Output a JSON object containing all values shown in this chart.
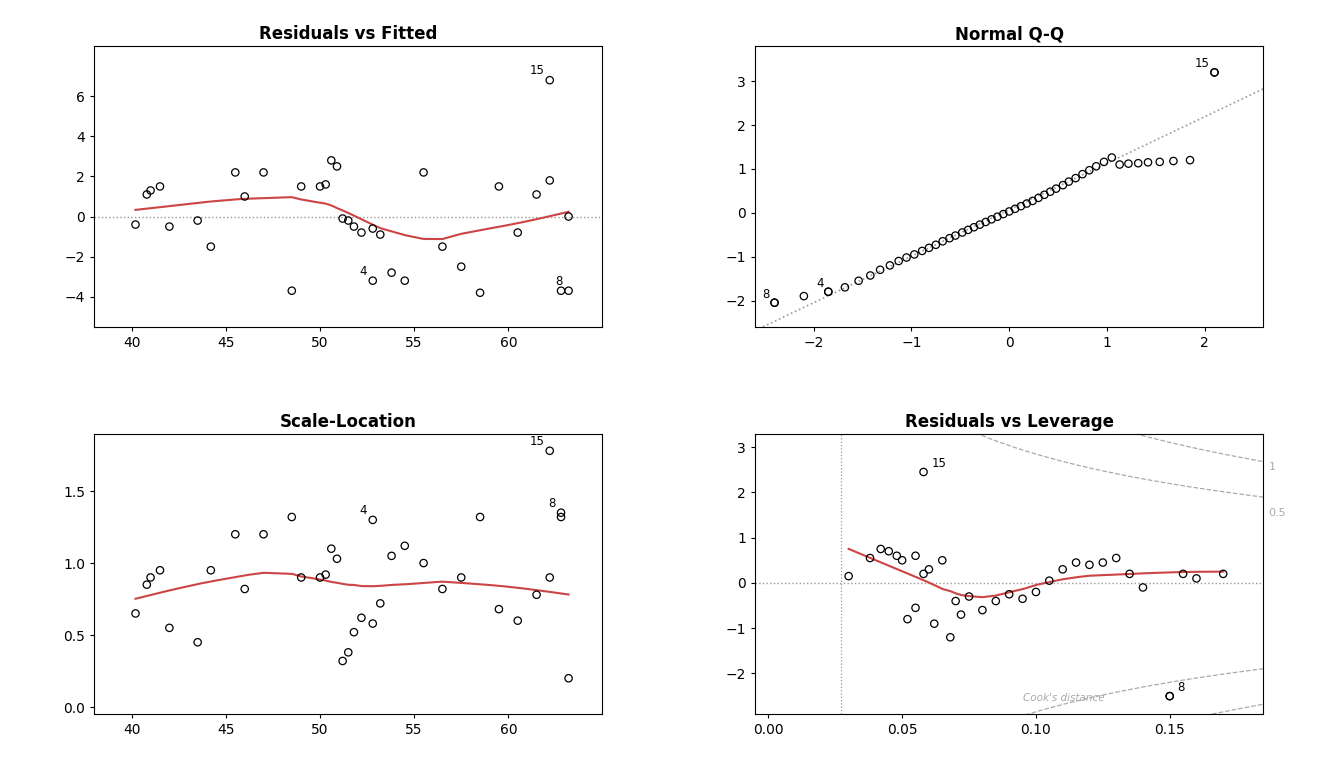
{
  "plot1_title": "Residuals vs Fitted",
  "plot2_title": "Normal Q-Q",
  "plot3_title": "Scale-Location",
  "plot4_title": "Residuals vs Leverage",
  "bg_color": "#ffffff",
  "line_color_red": "#cc4444",
  "line_color_gray": "#999999",
  "point_color": "#000000",
  "cook_color": "#aaaaaa",
  "plot1_fitted": [
    40.2,
    40.8,
    41.0,
    41.5,
    42.0,
    43.5,
    44.2,
    45.5,
    46.0,
    47.0,
    48.5,
    49.0,
    50.0,
    50.3,
    50.6,
    50.9,
    51.2,
    51.5,
    51.8,
    52.2,
    52.8,
    53.2,
    53.8,
    54.5,
    55.5,
    56.5,
    57.5,
    58.5,
    59.5,
    60.5,
    61.5,
    62.2,
    62.8,
    63.2
  ],
  "plot1_residuals": [
    -0.4,
    1.1,
    1.3,
    1.5,
    -0.5,
    -0.2,
    -1.5,
    2.2,
    1.0,
    2.2,
    -3.7,
    1.5,
    1.5,
    1.6,
    2.8,
    2.5,
    -0.1,
    -0.2,
    -0.5,
    -0.8,
    -0.6,
    -0.9,
    -2.8,
    -3.2,
    2.2,
    -1.5,
    -2.5,
    -3.8,
    1.5,
    -0.8,
    1.1,
    1.8,
    -3.7,
    0.0
  ],
  "plot1_labeled_pts": {
    "4": [
      52.8,
      -3.2
    ],
    "8": [
      63.2,
      -3.7
    ],
    "15": [
      62.2,
      6.8
    ]
  },
  "plot1_xlim": [
    38.0,
    65.0
  ],
  "plot1_ylim": [
    -5.5,
    8.5
  ],
  "plot1_xticks": [
    40,
    45,
    50,
    55,
    60
  ],
  "plot1_yticks": [
    -4,
    -2,
    0,
    2,
    4,
    6
  ],
  "plot2_theoretical": [
    -2.4,
    -2.1,
    -1.85,
    -1.68,
    -1.54,
    -1.42,
    -1.32,
    -1.22,
    -1.13,
    -1.05,
    -0.97,
    -0.89,
    -0.82,
    -0.75,
    -0.68,
    -0.61,
    -0.55,
    -0.48,
    -0.42,
    -0.36,
    -0.3,
    -0.24,
    -0.18,
    -0.12,
    -0.06,
    0.0,
    0.06,
    0.12,
    0.18,
    0.24,
    0.3,
    0.36,
    0.42,
    0.48,
    0.55,
    0.61,
    0.68,
    0.75,
    0.82,
    0.89,
    0.97,
    1.05,
    1.13,
    1.22,
    1.32,
    1.42,
    1.54,
    1.68,
    1.85,
    2.1
  ],
  "plot2_sample": [
    -2.05,
    -1.9,
    -1.8,
    -1.7,
    -1.55,
    -1.43,
    -1.3,
    -1.2,
    -1.1,
    -1.02,
    -0.95,
    -0.87,
    -0.8,
    -0.73,
    -0.65,
    -0.58,
    -0.52,
    -0.45,
    -0.39,
    -0.33,
    -0.27,
    -0.21,
    -0.15,
    -0.09,
    -0.03,
    0.03,
    0.09,
    0.15,
    0.21,
    0.27,
    0.34,
    0.41,
    0.48,
    0.55,
    0.63,
    0.71,
    0.79,
    0.88,
    0.97,
    1.06,
    1.16,
    1.26,
    1.1,
    1.12,
    1.13,
    1.15,
    1.16,
    1.18,
    1.2,
    3.2
  ],
  "plot2_labeled_pts": {
    "8": [
      -2.4,
      -2.05
    ],
    "4": [
      -1.85,
      -1.8
    ],
    "15": [
      2.1,
      3.2
    ]
  },
  "plot2_xlim": [
    -2.6,
    2.6
  ],
  "plot2_ylim": [
    -2.6,
    3.8
  ],
  "plot2_xticks": [
    -2,
    -1,
    0,
    1,
    2
  ],
  "plot2_yticks": [
    -2,
    -1,
    0,
    1,
    2,
    3
  ],
  "plot3_fitted": [
    40.2,
    40.8,
    41.0,
    41.5,
    42.0,
    43.5,
    44.2,
    45.5,
    46.0,
    47.0,
    48.5,
    49.0,
    50.0,
    50.3,
    50.6,
    50.9,
    51.2,
    51.5,
    51.8,
    52.2,
    52.8,
    53.2,
    53.8,
    54.5,
    55.5,
    56.5,
    57.5,
    58.5,
    59.5,
    60.5,
    61.5,
    62.2,
    62.8,
    63.2
  ],
  "plot3_sqrtresid": [
    0.65,
    0.85,
    0.9,
    0.95,
    0.55,
    0.45,
    0.95,
    1.2,
    0.82,
    1.2,
    1.32,
    0.9,
    0.9,
    0.92,
    1.1,
    1.03,
    0.32,
    0.38,
    0.52,
    0.62,
    0.58,
    0.72,
    1.05,
    1.12,
    1.0,
    0.82,
    0.9,
    1.32,
    0.68,
    0.6,
    0.78,
    0.9,
    1.32,
    0.2
  ],
  "plot3_labeled_pts": {
    "4": [
      52.8,
      1.3
    ],
    "8": [
      62.8,
      1.35
    ],
    "15": [
      62.2,
      1.78
    ]
  },
  "plot3_xlim": [
    38.0,
    65.0
  ],
  "plot3_ylim": [
    -0.05,
    1.9
  ],
  "plot3_xticks": [
    40,
    45,
    50,
    55,
    60
  ],
  "plot3_yticks": [
    0.0,
    0.5,
    1.0,
    1.5
  ],
  "plot4_leverage": [
    0.03,
    0.038,
    0.042,
    0.048,
    0.052,
    0.058,
    0.055,
    0.062,
    0.068,
    0.072,
    0.045,
    0.05,
    0.055,
    0.06,
    0.065,
    0.07,
    0.075,
    0.08,
    0.085,
    0.09,
    0.095,
    0.1,
    0.105,
    0.11,
    0.115,
    0.12,
    0.125,
    0.13,
    0.135,
    0.14,
    0.15,
    0.155,
    0.16,
    0.17
  ],
  "plot4_residuals": [
    0.15,
    0.55,
    0.75,
    0.6,
    -0.8,
    0.2,
    -0.55,
    -0.9,
    -1.2,
    -0.7,
    0.7,
    0.5,
    0.6,
    0.3,
    0.5,
    -0.4,
    -0.3,
    -0.6,
    -0.4,
    -0.25,
    -0.35,
    -0.2,
    0.05,
    0.3,
    0.45,
    0.4,
    0.45,
    0.55,
    0.2,
    -0.1,
    -2.5,
    0.2,
    0.1,
    0.2
  ],
  "plot4_labeled_pts": {
    "15": [
      0.058,
      2.45
    ],
    "8": [
      0.15,
      -2.5
    ]
  },
  "plot4_xlim": [
    -0.005,
    0.185
  ],
  "plot4_ylim": [
    -2.9,
    3.3
  ],
  "plot4_xticks": [
    0.0,
    0.05,
    0.1,
    0.15
  ],
  "plot4_yticks": [
    -2,
    -1,
    0,
    1,
    2,
    3
  ],
  "cook_label": "Cook's distance",
  "cook_vline_x": 0.027
}
